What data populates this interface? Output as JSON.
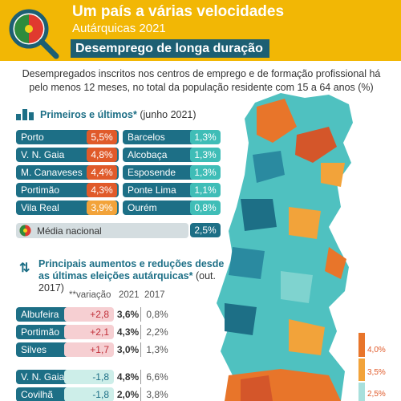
{
  "header": {
    "title": "Um país a várias velocidades",
    "subtitle": "Autárquicas 2021",
    "banner": "Desemprego de longa duração"
  },
  "description": "Desempregados inscritos nos centros de emprego e de formação profissional há pelo menos 12 meses, no total da população residente com 15 a 64 anos (%)",
  "ranking": {
    "title": "Primeiros e últimos*",
    "note": "(junho 2021)",
    "top": [
      {
        "name": "Porto",
        "value": "5,5%"
      },
      {
        "name": "V. N. Gaia",
        "value": "4,8%"
      },
      {
        "name": "M. Canaveses",
        "value": "4,4%"
      },
      {
        "name": "Portimão",
        "value": "4,3%"
      },
      {
        "name": "Vila Real",
        "value": "3,9%"
      }
    ],
    "bottom": [
      {
        "name": "Barcelos",
        "value": "1,3%"
      },
      {
        "name": "Alcobaça",
        "value": "1,3%"
      },
      {
        "name": "Esposende",
        "value": "1,3%"
      },
      {
        "name": "Ponte Lima",
        "value": "1,1%"
      },
      {
        "name": "Ourém",
        "value": "0,8%"
      }
    ],
    "national": {
      "name": "Média nacional",
      "value": "2,5%"
    }
  },
  "changes": {
    "title": "Principais aumentos e reduções desde as últimas eleições autárquicas*",
    "note": "(out. 2017)",
    "columns": [
      "**variação",
      "2021",
      "2017"
    ],
    "rows": [
      [
        "Albufeira",
        "+2,8",
        "3,6%",
        "0,8%"
      ],
      [
        "Portimão",
        "+2,1",
        "4,3%",
        "2,2%"
      ],
      [
        "Silves",
        "+1,7",
        "3,0%",
        "1,3%"
      ],
      [
        "V. N. Gaia",
        "-1,8",
        "4,8%",
        "6,6%"
      ],
      [
        "Covilhã",
        "-1,8",
        "2,0%",
        "3,8%"
      ]
    ]
  },
  "legend": [
    "4,0%",
    "3,5%",
    "2,5%"
  ]
}
